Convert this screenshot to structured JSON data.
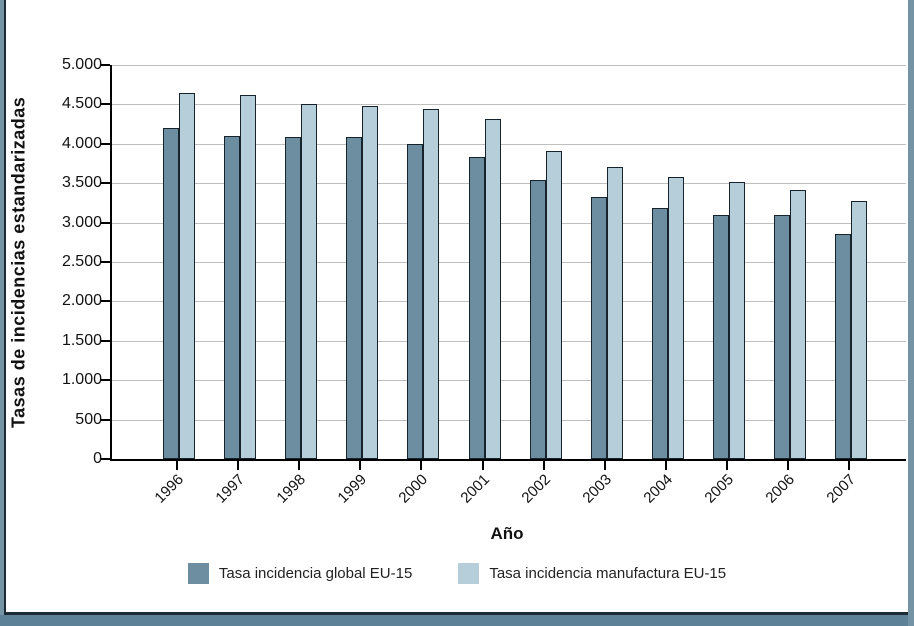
{
  "figure": {
    "background": "#ffffff",
    "frame": {
      "side_strip_color": "#7494a6",
      "bottom_bar_color": "#5d8197",
      "dark_border_color": "#1b2a35"
    }
  },
  "chart_data": {
    "type": "bar",
    "title": "",
    "xlabel": "Año",
    "ylabel": "Tasas de incidencias estandarizadas",
    "ylim": [
      0,
      5000
    ],
    "ytick_step": 500,
    "ytick_labels_top_down": [
      "5.000",
      "4.500",
      "4.000",
      "3.500",
      "3.000",
      "2.500",
      "2.000",
      "1.500",
      "1.000",
      "500",
      "0"
    ],
    "grid": true,
    "gridline_color": "#bfbfbf",
    "bar_border_color": "#16222c",
    "legend_position": "bottom",
    "categories": [
      "1996",
      "1997",
      "1998",
      "1999",
      "2000",
      "2001",
      "2002",
      "2003",
      "2004",
      "2005",
      "2006",
      "2007"
    ],
    "series": [
      {
        "name": "Tasa incidencia global EU-15",
        "color": "#6d8ea1",
        "values": [
          4200,
          4100,
          4080,
          4080,
          4000,
          3830,
          3540,
          3330,
          3180,
          3100,
          3100,
          2850
        ]
      },
      {
        "name": "Tasa incidencia manufactura EU-15",
        "color": "#b6cdda",
        "values": [
          4650,
          4620,
          4510,
          4480,
          4440,
          4310,
          3910,
          3710,
          3580,
          3510,
          3410,
          3270
        ]
      }
    ]
  }
}
